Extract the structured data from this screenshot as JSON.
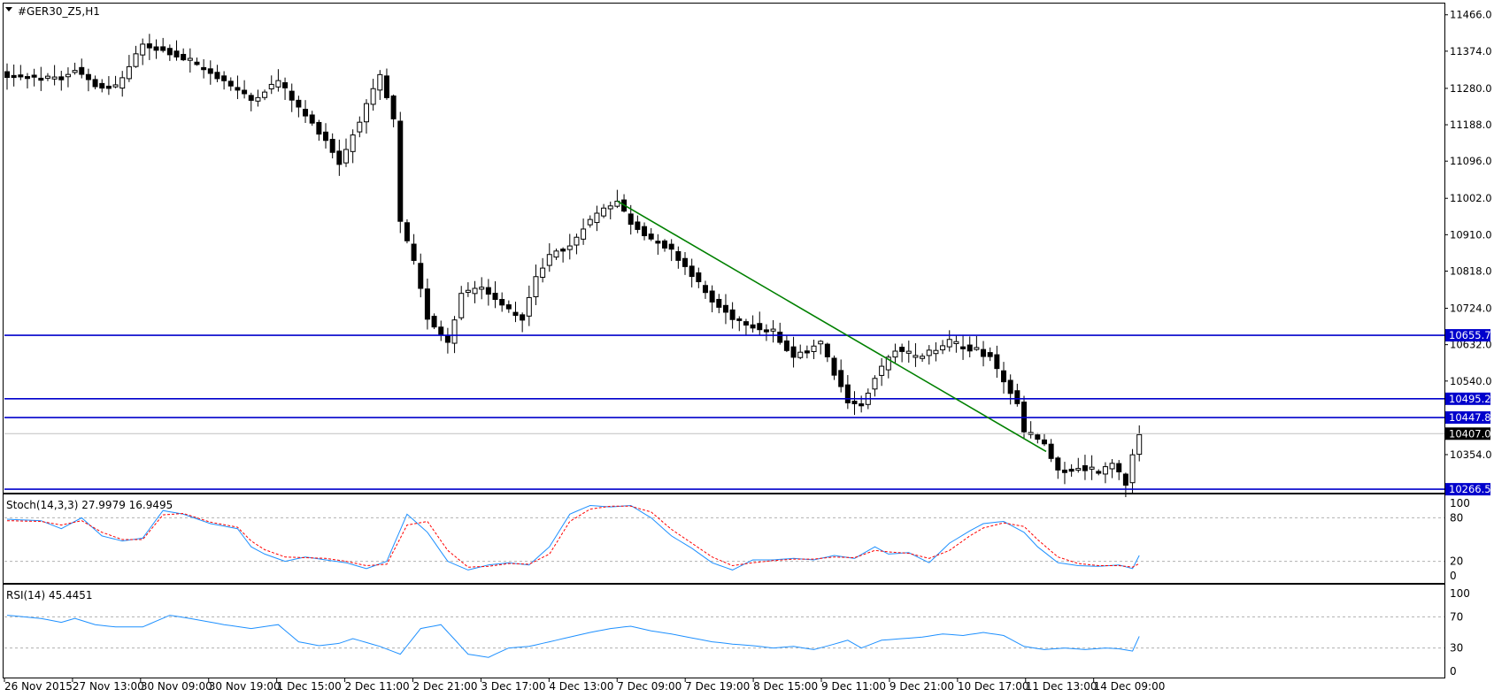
{
  "window": {
    "symbol_title": "#GER30_Z5,H1",
    "menu_arrow_icon": "triangle-down-icon"
  },
  "chart_data": [
    {
      "type": "candlestick",
      "title": "#GER30_Z5,H1",
      "price_axis_ticks": [
        11466.0,
        11374.0,
        11280.0,
        11188.0,
        11096.0,
        11002.0,
        10910.0,
        10818.0,
        10724.0,
        10632.0,
        10540.0,
        10354.0
      ],
      "price_axis_tick_labels": [
        "11466.0",
        "11374.0",
        "11280.0",
        "11188.0",
        "11096.0",
        "11002.0",
        "10910.0",
        "10818.0",
        "10724.0",
        "10632.0",
        "10540.0",
        "10354.0"
      ],
      "ylim": [
        10260,
        11490
      ],
      "time_axis_labels": [
        "26 Nov 2015",
        "27 Nov 13:00",
        "30 Nov 09:00",
        "30 Nov 19:00",
        "1 Dec 15:00",
        "2 Dec 11:00",
        "2 Dec 21:00",
        "3 Dec 17:00",
        "4 Dec 13:00",
        "7 Dec 09:00",
        "7 Dec 19:00",
        "8 Dec 15:00",
        "9 Dec 11:00",
        "9 Dec 21:00",
        "10 Dec 17:00",
        "11 Dec 13:00",
        "14 Dec 09:00"
      ],
      "close_path_keypoints": [
        [
          0,
          11310
        ],
        [
          8,
          11305
        ],
        [
          10,
          11330
        ],
        [
          13,
          11290
        ],
        [
          16,
          11280
        ],
        [
          20,
          11390
        ],
        [
          24,
          11370
        ],
        [
          27,
          11345
        ],
        [
          32,
          11300
        ],
        [
          36,
          11250
        ],
        [
          40,
          11300
        ],
        [
          43,
          11230
        ],
        [
          47,
          11150
        ],
        [
          49,
          11090
        ],
        [
          52,
          11200
        ],
        [
          55,
          11310
        ],
        [
          57,
          11200
        ],
        [
          58,
          10940
        ],
        [
          60,
          10840
        ],
        [
          62,
          10700
        ],
        [
          65,
          10640
        ],
        [
          67,
          10760
        ],
        [
          70,
          10780
        ],
        [
          73,
          10730
        ],
        [
          76,
          10700
        ],
        [
          78,
          10800
        ],
        [
          80,
          10860
        ],
        [
          83,
          10880
        ],
        [
          85,
          10930
        ],
        [
          88,
          10980
        ],
        [
          90,
          10995
        ],
        [
          92,
          10940
        ],
        [
          95,
          10900
        ],
        [
          98,
          10870
        ],
        [
          101,
          10810
        ],
        [
          104,
          10740
        ],
        [
          107,
          10700
        ],
        [
          110,
          10680
        ],
        [
          113,
          10660
        ],
        [
          116,
          10600
        ],
        [
          120,
          10640
        ],
        [
          122,
          10560
        ],
        [
          124,
          10490
        ],
        [
          126,
          10480
        ],
        [
          128,
          10550
        ],
        [
          131,
          10620
        ],
        [
          134,
          10600
        ],
        [
          137,
          10620
        ],
        [
          139,
          10640
        ],
        [
          142,
          10620
        ],
        [
          145,
          10600
        ],
        [
          147,
          10540
        ],
        [
          149,
          10480
        ],
        [
          150,
          10410
        ],
        [
          153,
          10380
        ],
        [
          155,
          10310
        ],
        [
          158,
          10320
        ],
        [
          161,
          10310
        ],
        [
          163,
          10330
        ],
        [
          165,
          10280
        ],
        [
          166,
          10350
        ],
        [
          167,
          10400
        ]
      ],
      "candle_count": 168,
      "last_price_label": "10407.0",
      "horizontal_levels": [
        {
          "value": 10655.7,
          "label": "10655.7"
        },
        {
          "value": 10495.2,
          "label": "10495.2"
        },
        {
          "value": 10447.8,
          "label": "10447.8"
        },
        {
          "value": 10266.5,
          "label": "10266.5"
        }
      ],
      "trendline": {
        "from": {
          "bar": 90,
          "price": 10995
        },
        "to": {
          "bar": 150,
          "price": 10364
        },
        "color": "#008000"
      },
      "colors": {
        "level_line": "#0000cc",
        "level_label_bg": "#0000cc",
        "last_price_bg": "#000000",
        "candle": "#000000"
      }
    },
    {
      "type": "line",
      "title": "Stoch(14,3,3) 27.9979 16.9495",
      "ylim": [
        0,
        100
      ],
      "tick_labels": [
        "100",
        "80",
        "20",
        "0"
      ],
      "ticks": [
        100,
        80,
        20,
        0
      ],
      "levels": [
        80,
        20
      ],
      "series": [
        {
          "color": "#1e90ff",
          "style": "solid",
          "keypoints": [
            [
              0,
              78
            ],
            [
              5,
              76
            ],
            [
              8,
              65
            ],
            [
              11,
              80
            ],
            [
              14,
              55
            ],
            [
              17,
              48
            ],
            [
              20,
              52
            ],
            [
              23,
              90
            ],
            [
              26,
              85
            ],
            [
              30,
              72
            ],
            [
              34,
              65
            ],
            [
              36,
              40
            ],
            [
              38,
              30
            ],
            [
              41,
              20
            ],
            [
              44,
              26
            ],
            [
              47,
              22
            ],
            [
              50,
              18
            ],
            [
              53,
              10
            ],
            [
              56,
              20
            ],
            [
              59,
              85
            ],
            [
              62,
              60
            ],
            [
              65,
              20
            ],
            [
              68,
              8
            ],
            [
              71,
              15
            ],
            [
              74,
              18
            ],
            [
              77,
              15
            ],
            [
              80,
              40
            ],
            [
              83,
              85
            ],
            [
              86,
              97
            ],
            [
              89,
              95
            ],
            [
              92,
              97
            ],
            [
              95,
              80
            ],
            [
              98,
              55
            ],
            [
              101,
              38
            ],
            [
              104,
              18
            ],
            [
              107,
              8
            ],
            [
              110,
              22
            ],
            [
              113,
              22
            ],
            [
              116,
              24
            ],
            [
              119,
              22
            ],
            [
              122,
              28
            ],
            [
              125,
              24
            ],
            [
              128,
              40
            ],
            [
              130,
              30
            ],
            [
              133,
              32
            ],
            [
              136,
              18
            ],
            [
              139,
              45
            ],
            [
              142,
              62
            ],
            [
              144,
              72
            ],
            [
              147,
              75
            ],
            [
              150,
              60
            ],
            [
              152,
              40
            ],
            [
              155,
              18
            ],
            [
              158,
              14
            ],
            [
              161,
              13
            ],
            [
              164,
              15
            ],
            [
              166,
              10
            ],
            [
              167,
              28
            ]
          ]
        },
        {
          "color": "#ff0000",
          "style": "dashed",
          "keypoints": [
            [
              0,
              76
            ],
            [
              5,
              75
            ],
            [
              8,
              70
            ],
            [
              11,
              76
            ],
            [
              14,
              60
            ],
            [
              17,
              50
            ],
            [
              20,
              50
            ],
            [
              23,
              84
            ],
            [
              26,
              86
            ],
            [
              30,
              74
            ],
            [
              34,
              67
            ],
            [
              36,
              48
            ],
            [
              38,
              36
            ],
            [
              41,
              26
            ],
            [
              44,
              25
            ],
            [
              47,
              24
            ],
            [
              50,
              20
            ],
            [
              53,
              14
            ],
            [
              56,
              16
            ],
            [
              59,
              70
            ],
            [
              62,
              75
            ],
            [
              65,
              35
            ],
            [
              68,
              12
            ],
            [
              71,
              13
            ],
            [
              74,
              17
            ],
            [
              77,
              16
            ],
            [
              80,
              30
            ],
            [
              83,
              75
            ],
            [
              86,
              92
            ],
            [
              89,
              96
            ],
            [
              92,
              96
            ],
            [
              95,
              88
            ],
            [
              98,
              64
            ],
            [
              101,
              45
            ],
            [
              104,
              26
            ],
            [
              107,
              14
            ],
            [
              110,
              18
            ],
            [
              113,
              21
            ],
            [
              116,
              23
            ],
            [
              119,
              23
            ],
            [
              122,
              26
            ],
            [
              125,
              25
            ],
            [
              128,
              35
            ],
            [
              130,
              33
            ],
            [
              133,
              31
            ],
            [
              136,
              24
            ],
            [
              139,
              35
            ],
            [
              142,
              55
            ],
            [
              144,
              66
            ],
            [
              147,
              73
            ],
            [
              150,
              68
            ],
            [
              152,
              50
            ],
            [
              155,
              26
            ],
            [
              158,
              17
            ],
            [
              161,
              14
            ],
            [
              164,
              14
            ],
            [
              166,
              12
            ],
            [
              167,
              17
            ]
          ]
        }
      ]
    },
    {
      "type": "line",
      "title": "RSI(14) 45.4451",
      "ylim": [
        0,
        100
      ],
      "tick_labels": [
        "100",
        "70",
        "30",
        "0"
      ],
      "ticks": [
        100,
        70,
        30,
        0
      ],
      "levels": [
        70,
        30
      ],
      "series": [
        {
          "color": "#1e90ff",
          "style": "solid",
          "keypoints": [
            [
              0,
              72
            ],
            [
              5,
              68
            ],
            [
              8,
              63
            ],
            [
              10,
              68
            ],
            [
              13,
              60
            ],
            [
              16,
              57
            ],
            [
              20,
              57
            ],
            [
              24,
              72
            ],
            [
              27,
              68
            ],
            [
              32,
              60
            ],
            [
              36,
              55
            ],
            [
              40,
              60
            ],
            [
              43,
              38
            ],
            [
              46,
              33
            ],
            [
              49,
              36
            ],
            [
              51,
              42
            ],
            [
              55,
              32
            ],
            [
              58,
              22
            ],
            [
              61,
              55
            ],
            [
              64,
              60
            ],
            [
              68,
              22
            ],
            [
              71,
              18
            ],
            [
              74,
              30
            ],
            [
              77,
              32
            ],
            [
              80,
              38
            ],
            [
              83,
              44
            ],
            [
              86,
              50
            ],
            [
              89,
              55
            ],
            [
              92,
              58
            ],
            [
              95,
              52
            ],
            [
              98,
              48
            ],
            [
              101,
              43
            ],
            [
              104,
              38
            ],
            [
              107,
              35
            ],
            [
              110,
              33
            ],
            [
              113,
              30
            ],
            [
              116,
              32
            ],
            [
              119,
              28
            ],
            [
              122,
              35
            ],
            [
              124,
              40
            ],
            [
              126,
              30
            ],
            [
              129,
              40
            ],
            [
              132,
              42
            ],
            [
              135,
              44
            ],
            [
              138,
              48
            ],
            [
              141,
              46
            ],
            [
              144,
              50
            ],
            [
              147,
              46
            ],
            [
              150,
              32
            ],
            [
              153,
              28
            ],
            [
              156,
              30
            ],
            [
              159,
              28
            ],
            [
              162,
              30
            ],
            [
              164,
              29
            ],
            [
              166,
              26
            ],
            [
              167,
              45
            ]
          ]
        }
      ]
    }
  ],
  "indicator_titles": {
    "stoch": "Stoch(14,3,3) 27.9979 16.9495",
    "rsi": "RSI(14) 45.4451"
  }
}
